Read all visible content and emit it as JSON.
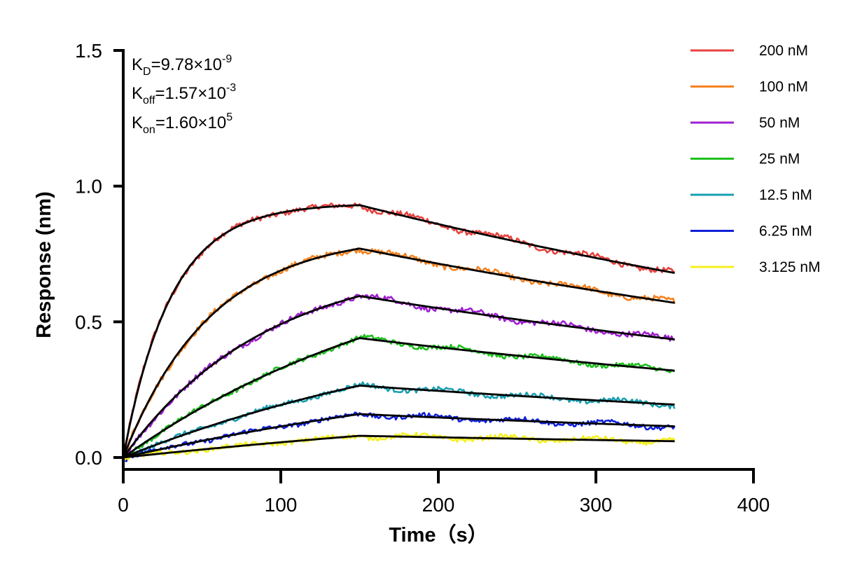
{
  "chart_data": {
    "type": "line",
    "title": "",
    "xlabel": "Time（s）",
    "ylabel": "Response (nm)",
    "xlim": [
      0,
      400
    ],
    "ylim": [
      0,
      1.5
    ],
    "xticks": [
      0,
      100,
      200,
      300,
      400
    ],
    "xtick_labels": [
      "0",
      "100",
      "200",
      "300",
      "400"
    ],
    "yticks": [
      0.0,
      0.5,
      1.0,
      1.5
    ],
    "ytick_labels": [
      "0.0",
      "0.5",
      "1.0",
      "1.5"
    ],
    "grid": false,
    "legend_position": "top-right",
    "association_end_time": 150,
    "end_time": 350,
    "fit_color": "#000000",
    "annotations": {
      "kd": {
        "symbol": "K",
        "sub": "D",
        "value": "=9.78×10",
        "exp": "-9"
      },
      "koff": {
        "symbol": "K",
        "sub": "off",
        "value": "=1.57×10",
        "exp": "-3"
      },
      "kon": {
        "symbol": "K",
        "sub": "on",
        "value": "=1.60×10",
        "exp": "5"
      }
    },
    "series": [
      {
        "name": "200 nM",
        "color": "#E8433F",
        "peak": 0.93,
        "end": 0.68,
        "assoc_shape": 0.033
      },
      {
        "name": "100 nM",
        "color": "#F5821F",
        "peak": 0.77,
        "end": 0.57,
        "assoc_shape": 0.018
      },
      {
        "name": "50 nM",
        "color": "#A020D0",
        "peak": 0.595,
        "end": 0.435,
        "assoc_shape": 0.011
      },
      {
        "name": "25 nM",
        "color": "#1EC01E",
        "peak": 0.44,
        "end": 0.32,
        "assoc_shape": 0.005
      },
      {
        "name": "12.5 nM",
        "color": "#1A9FB0",
        "peak": 0.265,
        "end": 0.195,
        "assoc_shape": 0.004
      },
      {
        "name": "6.25 nM",
        "color": "#1020D8",
        "peak": 0.16,
        "end": 0.115,
        "assoc_shape": 0.003
      },
      {
        "name": "3.125 nM",
        "color": "#F5F01E",
        "peak": 0.08,
        "end": 0.06,
        "assoc_shape": 0.002
      }
    ]
  }
}
